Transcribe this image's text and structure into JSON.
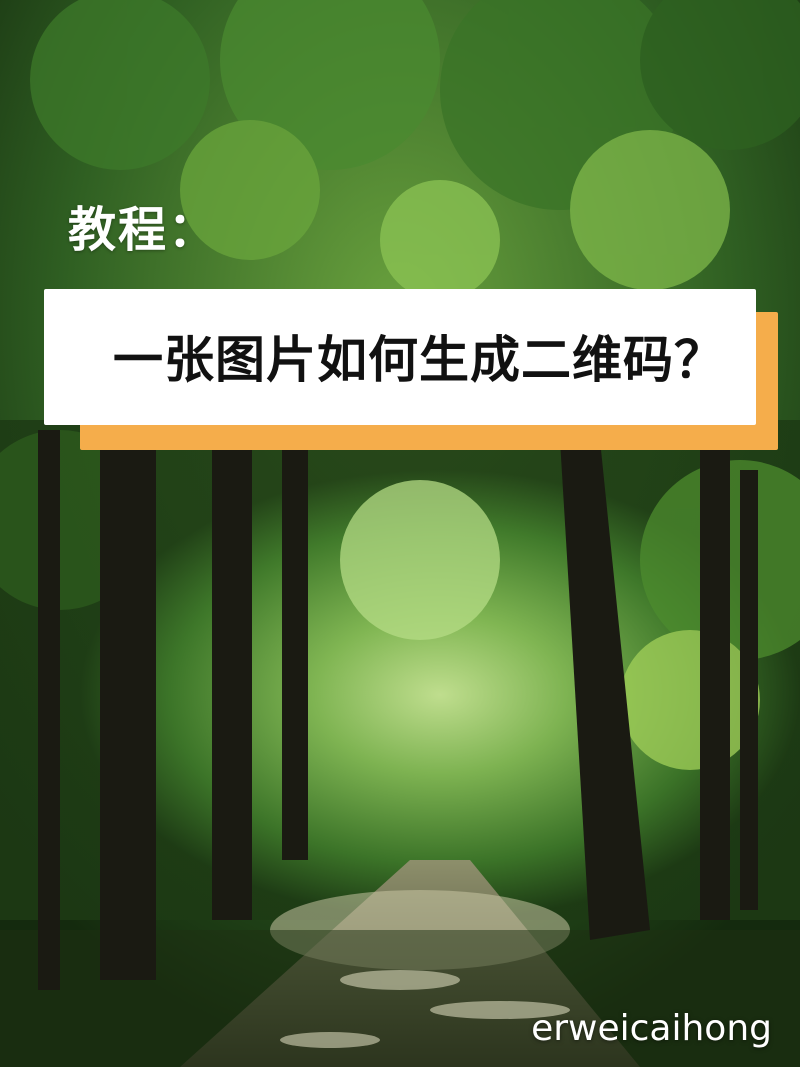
{
  "photo": {
    "subject": "forest-path"
  },
  "heading": {
    "kicker": "教程：",
    "title": "一张图片如何生成二维码？"
  },
  "watermark": {
    "text": "erweicaihong"
  },
  "colors": {
    "banner_background": "#ffffff",
    "banner_accent": "#f5ad4b",
    "title_text": "#111111",
    "overlay_text": "#ffffff"
  }
}
